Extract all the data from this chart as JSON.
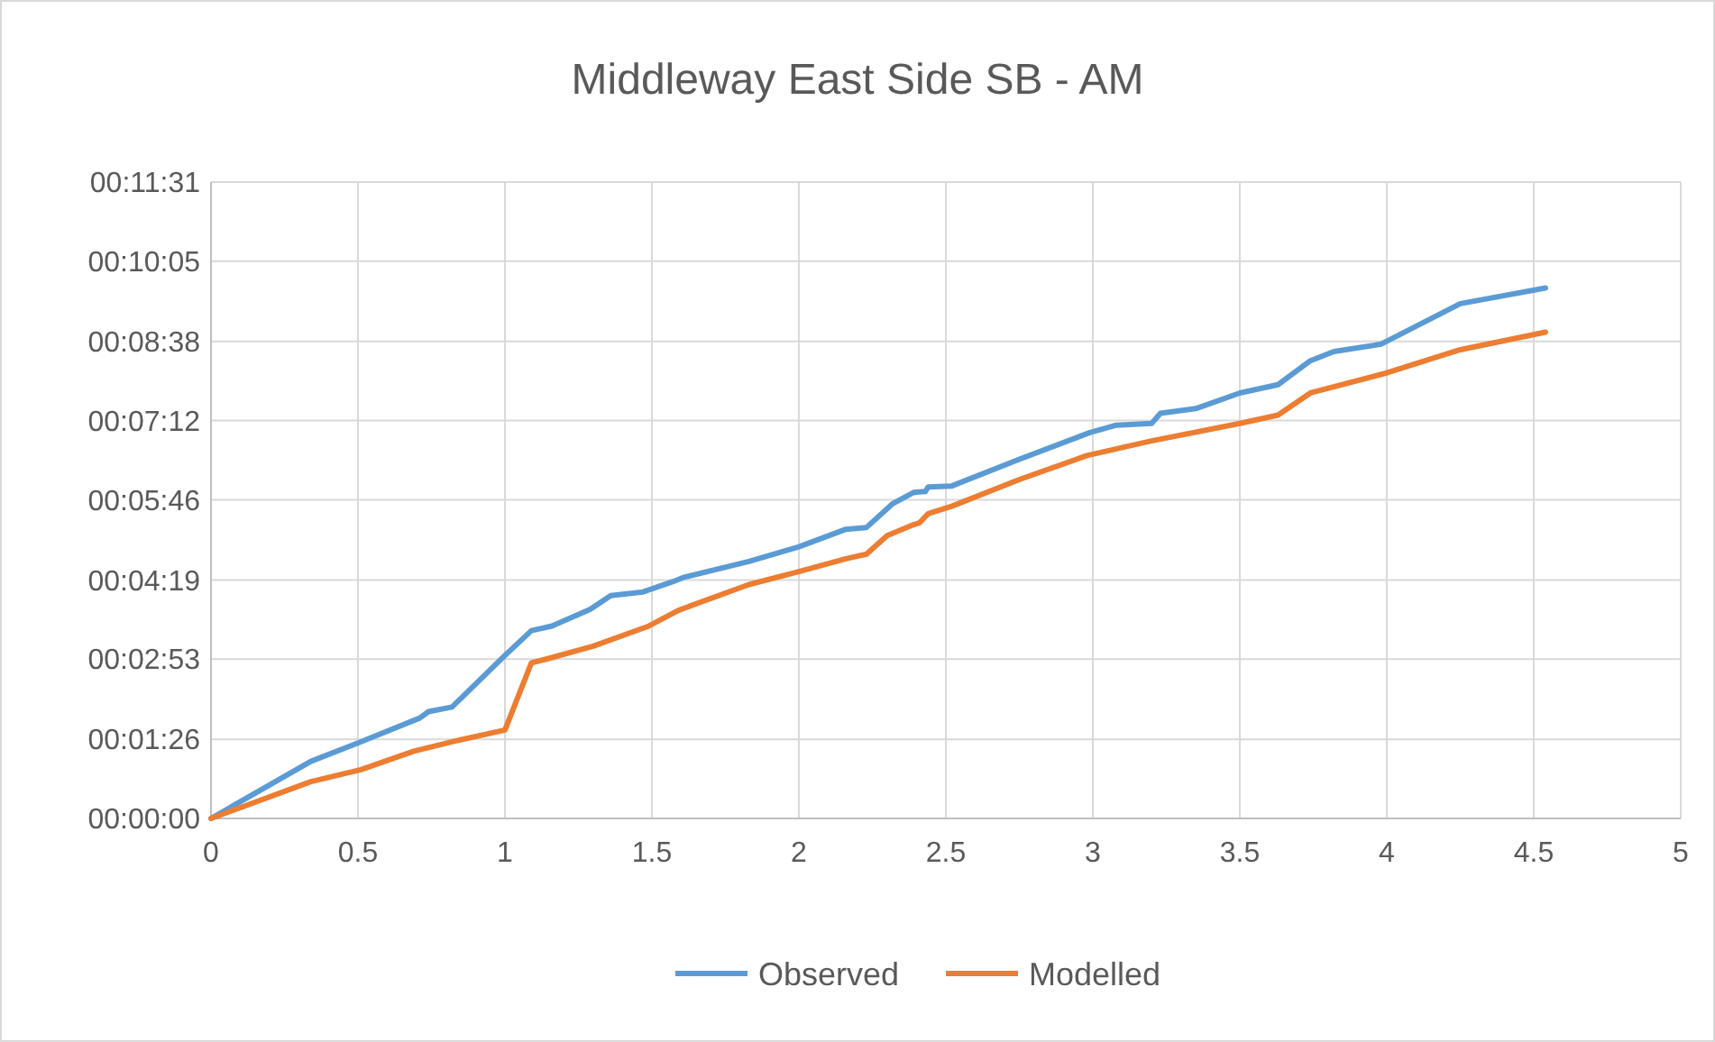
{
  "chart_data": {
    "type": "line",
    "title": "Middleway East Side SB - AM",
    "xlim": [
      0,
      5
    ],
    "xticks": [
      0,
      0.5,
      1,
      1.5,
      2,
      2.5,
      3,
      3.5,
      4,
      4.5,
      5
    ],
    "ylim": [
      0,
      691
    ],
    "yticks": [
      {
        "value": 0,
        "label": "00:00:00"
      },
      {
        "value": 86,
        "label": "00:01:26"
      },
      {
        "value": 173,
        "label": "00:02:53"
      },
      {
        "value": 259,
        "label": "00:04:19"
      },
      {
        "value": 346,
        "label": "00:05:46"
      },
      {
        "value": 432,
        "label": "00:07:12"
      },
      {
        "value": 518,
        "label": "00:08:38"
      },
      {
        "value": 605,
        "label": "00:10:05"
      },
      {
        "value": 691,
        "label": "00:11:31"
      }
    ],
    "grid": true,
    "legend": "bottom",
    "line_style": "solid",
    "marker": "none",
    "series": [
      {
        "name": "Observed",
        "color": "#5b9bd5",
        "x": [
          0,
          0.34,
          0.5,
          0.71,
          0.74,
          0.82,
          1.0,
          1.09,
          1.16,
          1.29,
          1.36,
          1.47,
          1.57,
          1.61,
          1.83,
          2.0,
          2.16,
          2.23,
          2.32,
          2.39,
          2.43,
          2.44,
          2.52,
          2.75,
          2.99,
          3.08,
          3.2,
          3.23,
          3.35,
          3.5,
          3.63,
          3.74,
          3.82,
          3.98,
          4.25,
          4.54
        ],
        "values": [
          0,
          62,
          82,
          109,
          116,
          121,
          177,
          204,
          209,
          227,
          242,
          246,
          257,
          262,
          279,
          295,
          314,
          316,
          342,
          354,
          355,
          360,
          361,
          390,
          419,
          427,
          429,
          440,
          445,
          462,
          471,
          497,
          507,
          515,
          559,
          576
        ]
      },
      {
        "name": "Modelled",
        "color": "#ed7d31",
        "x": [
          0,
          0.34,
          0.51,
          0.69,
          0.83,
          1.0,
          1.09,
          1.14,
          1.3,
          1.49,
          1.59,
          1.83,
          2.0,
          2.16,
          2.23,
          2.3,
          2.39,
          2.41,
          2.44,
          2.52,
          2.75,
          2.98,
          3.2,
          3.5,
          3.63,
          3.74,
          3.99,
          4.25,
          4.54
        ],
        "values": [
          0,
          40,
          53,
          73,
          84,
          96,
          169,
          173,
          187,
          209,
          226,
          254,
          268,
          282,
          287,
          307,
          319,
          321,
          331,
          339,
          368,
          394,
          410,
          429,
          438,
          462,
          483,
          509,
          528
        ]
      }
    ]
  }
}
